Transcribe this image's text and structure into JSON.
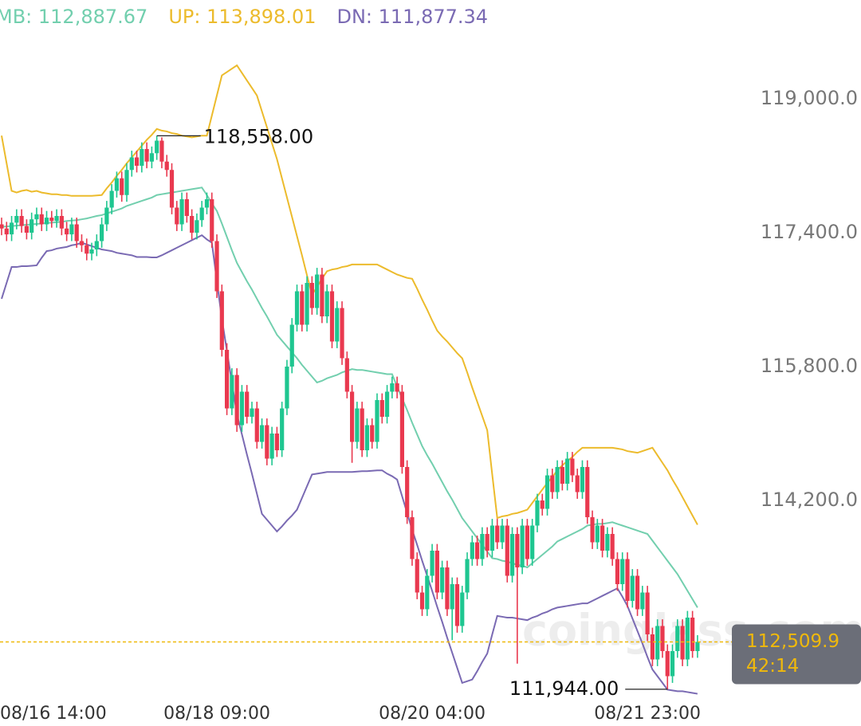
{
  "chart_data": {
    "type": "candlestick",
    "categories": [
      "08/16 14:00",
      null,
      null,
      null,
      null,
      null,
      null,
      null,
      null,
      null,
      null,
      null,
      null,
      null,
      null,
      null,
      null,
      null,
      null,
      null,
      null,
      null,
      null,
      null,
      null,
      null,
      null,
      null,
      null,
      null,
      null,
      null,
      null,
      null,
      null,
      null,
      null,
      null,
      null,
      null,
      null,
      null,
      null,
      "08/18 09:00",
      null,
      null,
      null,
      null,
      null,
      null,
      null,
      null,
      null,
      null,
      null,
      null,
      null,
      null,
      null,
      null,
      null,
      null,
      null,
      null,
      null,
      null,
      null,
      null,
      null,
      null,
      null,
      null,
      null,
      null,
      null,
      null,
      null,
      null,
      null,
      null,
      null,
      null,
      null,
      null,
      null,
      null,
      "08/20 04:00",
      null,
      null,
      null,
      null,
      null,
      null,
      null,
      null,
      null,
      null,
      null,
      null,
      null,
      null,
      null,
      null,
      null,
      null,
      null,
      null,
      null,
      null,
      null,
      null,
      null,
      null,
      null,
      null,
      null,
      null,
      null,
      null,
      null,
      null,
      null,
      null,
      null,
      null,
      null,
      null,
      null,
      null,
      "08/21 23:00",
      null,
      null,
      null,
      null,
      null,
      null,
      null,
      null,
      null,
      null
    ],
    "open": [
      117500,
      117450,
      117380,
      117520,
      117600,
      117480,
      117400,
      117560,
      117620,
      117500,
      117580,
      117540,
      117600,
      117450,
      117380,
      117500,
      117300,
      117250,
      117150,
      117200,
      117300,
      117500,
      117700,
      117900,
      118050,
      117850,
      118150,
      118300,
      118200,
      118400,
      118250,
      118350,
      118500,
      118250,
      118150,
      117700,
      117500,
      117800,
      117600,
      117400,
      117550,
      117700,
      117800,
      117300,
      116700,
      116000,
      115300,
      115700,
      115100,
      115500,
      115200,
      115300,
      114900,
      115100,
      114700,
      115000,
      114800,
      115300,
      115800,
      116300,
      116700,
      116300,
      116800,
      116500,
      116900,
      116400,
      116700,
      116100,
      116500,
      115900,
      115500,
      114900,
      115300,
      114800,
      115100,
      114900,
      115400,
      115200,
      115500,
      115600,
      115500,
      114600,
      114000,
      113500,
      113100,
      112900,
      113300,
      113600,
      113100,
      113400,
      112900,
      113200,
      112700,
      113100,
      113500,
      113700,
      113500,
      113800,
      113600,
      113900,
      113700,
      113900,
      113300,
      113800,
      113400,
      113900,
      113500,
      113900,
      114200,
      114100,
      114500,
      114300,
      114600,
      114400,
      114700,
      114500,
      114300,
      114600,
      114000,
      113700,
      113900,
      113600,
      113800,
      113500,
      113200,
      113500,
      113000,
      113300,
      112900,
      113100,
      112600,
      112300,
      112700,
      112400,
      112100,
      112400,
      112700,
      112300,
      112800,
      112400
    ],
    "high": [
      117580,
      117530,
      117600,
      117680,
      117680,
      117560,
      117640,
      117700,
      117700,
      117660,
      117660,
      117680,
      117680,
      117530,
      117580,
      117580,
      117380,
      117330,
      117280,
      117380,
      117580,
      117780,
      117980,
      118130,
      118130,
      118230,
      118380,
      118380,
      118480,
      118480,
      118430,
      118558,
      118540,
      118330,
      118230,
      117780,
      117880,
      117880,
      117680,
      117630,
      117780,
      117880,
      117880,
      117380,
      116780,
      116080,
      115780,
      115780,
      115580,
      115580,
      115380,
      115380,
      115180,
      115180,
      115080,
      115080,
      115380,
      115880,
      116380,
      116780,
      116780,
      116880,
      116880,
      116980,
      116980,
      116780,
      116780,
      116580,
      116580,
      115980,
      115580,
      115380,
      115380,
      115180,
      115180,
      115480,
      115480,
      115580,
      115680,
      115680,
      115580,
      114680,
      114080,
      113580,
      113180,
      113380,
      113680,
      113680,
      113480,
      113480,
      113280,
      113280,
      113180,
      113580,
      113780,
      113780,
      113880,
      113880,
      113980,
      113980,
      113980,
      113980,
      113880,
      113880,
      113980,
      113980,
      113980,
      114280,
      114280,
      114580,
      114580,
      114680,
      114680,
      114780,
      114780,
      114580,
      114680,
      114680,
      114080,
      113980,
      113980,
      113880,
      113880,
      113580,
      113580,
      113580,
      113380,
      113380,
      113180,
      113180,
      112680,
      112780,
      112780,
      112480,
      112480,
      112780,
      112780,
      112880,
      112880,
      112590
    ],
    "low": [
      117370,
      117300,
      117300,
      117440,
      117400,
      117320,
      117320,
      117480,
      117420,
      117420,
      117460,
      117460,
      117370,
      117300,
      117300,
      117220,
      117170,
      117070,
      117070,
      117120,
      117220,
      117420,
      117620,
      117820,
      117770,
      117770,
      118070,
      118120,
      118120,
      118170,
      118170,
      118270,
      118170,
      118070,
      117620,
      117420,
      117420,
      117520,
      117320,
      117320,
      117470,
      117620,
      117220,
      116620,
      115920,
      115220,
      115220,
      115020,
      115020,
      115120,
      115120,
      114820,
      114820,
      114620,
      114620,
      114720,
      114720,
      115220,
      115720,
      116220,
      116220,
      116220,
      116420,
      116420,
      116320,
      116320,
      116020,
      116020,
      115820,
      115420,
      114650,
      114820,
      114720,
      114720,
      114820,
      114820,
      115120,
      115120,
      115420,
      115420,
      114520,
      113920,
      113420,
      113020,
      112820,
      112820,
      113220,
      113020,
      113020,
      112820,
      112530,
      112620,
      112620,
      113020,
      113420,
      113420,
      113420,
      113520,
      113520,
      113620,
      113620,
      113220,
      113220,
      112250,
      113320,
      113420,
      113420,
      113820,
      114020,
      114020,
      114220,
      114220,
      114320,
      114320,
      114420,
      114220,
      114220,
      113920,
      113620,
      113620,
      113520,
      113520,
      113420,
      113120,
      113120,
      112920,
      112920,
      112820,
      112820,
      112520,
      112220,
      112220,
      112320,
      111944,
      112020,
      112320,
      112220,
      112220,
      112320,
      112320
    ],
    "close": [
      117450,
      117380,
      117520,
      117600,
      117480,
      117400,
      117560,
      117620,
      117500,
      117580,
      117540,
      117600,
      117450,
      117380,
      117500,
      117300,
      117250,
      117150,
      117200,
      117300,
      117500,
      117700,
      117900,
      118050,
      117850,
      118150,
      118300,
      118200,
      118400,
      118250,
      118350,
      118500,
      118250,
      118150,
      117700,
      117500,
      117800,
      117600,
      117400,
      117550,
      117700,
      117800,
      117300,
      116700,
      116000,
      115300,
      115700,
      115100,
      115500,
      115200,
      115300,
      114900,
      115100,
      114700,
      115000,
      114800,
      115300,
      115800,
      116300,
      116700,
      116300,
      116800,
      116500,
      116900,
      116400,
      116700,
      116100,
      116500,
      115900,
      115500,
      114900,
      115300,
      114800,
      115100,
      114900,
      115400,
      115200,
      115500,
      115600,
      115500,
      114600,
      114000,
      113500,
      113100,
      112900,
      113300,
      113600,
      113100,
      113400,
      112900,
      113200,
      112700,
      113100,
      113500,
      113700,
      113500,
      113800,
      113600,
      113900,
      113700,
      113900,
      113300,
      113800,
      113400,
      113900,
      113500,
      113900,
      114200,
      114100,
      114500,
      114300,
      114600,
      114400,
      114700,
      114500,
      114300,
      114600,
      114000,
      113700,
      113900,
      113600,
      113800,
      113500,
      113200,
      113500,
      113000,
      113300,
      112900,
      113100,
      112600,
      112300,
      112700,
      112400,
      112100,
      112400,
      112700,
      112300,
      112800,
      112400,
      112509.9
    ],
    "up_color": "#1fc690",
    "down_color": "#e9394f",
    "series": [
      {
        "name": "MB: 112,887.67",
        "color": "#72cfae",
        "values": [
          117470,
          117475,
          117480,
          117485,
          117490,
          117495,
          117500,
          117505,
          117510,
          117515,
          117520,
          117525,
          117530,
          117540,
          117545,
          117550,
          117560,
          117570,
          117585,
          117600,
          117610,
          117630,
          117650,
          117670,
          117690,
          117720,
          117740,
          117760,
          117780,
          117800,
          117820,
          117850,
          117860,
          117870,
          117880,
          117890,
          117900,
          117910,
          117920,
          117930,
          117940,
          117850,
          117750,
          117660,
          117510,
          117350,
          117190,
          117040,
          116930,
          116820,
          116720,
          116610,
          116500,
          116400,
          116290,
          116180,
          116110,
          116040,
          115970,
          115900,
          115820,
          115750,
          115680,
          115610,
          115630,
          115660,
          115680,
          115700,
          115730,
          115750,
          115770,
          115760,
          115760,
          115750,
          115740,
          115730,
          115720,
          115710,
          115710,
          115560,
          115420,
          115280,
          115130,
          114990,
          114850,
          114740,
          114640,
          114530,
          114420,
          114310,
          114210,
          114100,
          113990,
          113910,
          113830,
          113750,
          113670,
          113590,
          113510,
          113500,
          113480,
          113470,
          113450,
          113430,
          113420,
          113400,
          113450,
          113500,
          113550,
          113600,
          113650,
          113710,
          113740,
          113770,
          113800,
          113830,
          113860,
          113900,
          113910,
          113920,
          113920,
          113930,
          113940,
          113920,
          113900,
          113880,
          113860,
          113840,
          113820,
          113800,
          113720,
          113640,
          113560,
          113480,
          113400,
          113320,
          113220,
          113120,
          113020,
          112920
        ]
      },
      {
        "name": "UP: 113,898.01",
        "color": "#ecbb2c",
        "values": [
          118560,
          118230,
          117900,
          117880,
          117900,
          117910,
          117890,
          117900,
          117880,
          117870,
          117860,
          117860,
          117850,
          117850,
          117840,
          117840,
          117840,
          117840,
          117840,
          117845,
          117850,
          117930,
          118000,
          118080,
          118150,
          118230,
          118300,
          118370,
          118440,
          118510,
          118570,
          118640,
          118620,
          118610,
          118590,
          118580,
          118560,
          118550,
          118540,
          118550,
          118560,
          118560,
          118800,
          119040,
          119280,
          119320,
          119360,
          119400,
          119310,
          119220,
          119130,
          119040,
          118850,
          118660,
          118470,
          118280,
          118050,
          117820,
          117590,
          117360,
          117130,
          116890,
          116660,
          116750,
          116850,
          116940,
          116960,
          116970,
          116990,
          117000,
          117020,
          117020,
          117020,
          117020,
          117020,
          117020,
          116990,
          116960,
          116930,
          116900,
          116880,
          116860,
          116850,
          116730,
          116600,
          116480,
          116350,
          116230,
          116160,
          116100,
          116030,
          115960,
          115900,
          115730,
          115550,
          115380,
          115210,
          115040,
          114510,
          113990,
          114010,
          114020,
          114040,
          114050,
          114070,
          114090,
          114170,
          114250,
          114330,
          114410,
          114480,
          114560,
          114620,
          114670,
          114720,
          114780,
          114830,
          114830,
          114830,
          114830,
          114830,
          114830,
          114830,
          114820,
          114810,
          114790,
          114780,
          114770,
          114790,
          114810,
          114830,
          114740,
          114650,
          114560,
          114450,
          114350,
          114240,
          114130,
          114020,
          113910
        ]
      },
      {
        "name": "DN: 111,877.34",
        "color": "#7a6ab3",
        "values": [
          116610,
          116800,
          116990,
          116990,
          117000,
          117000,
          117005,
          117010,
          117100,
          117180,
          117190,
          117210,
          117220,
          117230,
          117250,
          117260,
          117280,
          117260,
          117240,
          117220,
          117200,
          117190,
          117180,
          117160,
          117150,
          117140,
          117130,
          117110,
          117110,
          117110,
          117105,
          117105,
          117130,
          117160,
          117190,
          117220,
          117250,
          117280,
          117310,
          117340,
          117370,
          117320,
          117280,
          116820,
          116370,
          115990,
          115610,
          115230,
          114990,
          114750,
          114520,
          114280,
          114040,
          113970,
          113900,
          113830,
          113890,
          113960,
          114020,
          114090,
          114230,
          114370,
          114510,
          114520,
          114530,
          114540,
          114540,
          114540,
          114540,
          114540,
          114540,
          114545,
          114550,
          114550,
          114555,
          114560,
          114560,
          114520,
          114490,
          114450,
          114250,
          114050,
          113850,
          113670,
          113480,
          113300,
          113120,
          112930,
          112750,
          112560,
          112380,
          112200,
          112020,
          112040,
          112060,
          112160,
          112270,
          112370,
          112600,
          112820,
          112810,
          112800,
          112800,
          112790,
          112780,
          112770,
          112800,
          112820,
          112850,
          112870,
          112900,
          112920,
          112930,
          112940,
          112950,
          112960,
          112970,
          112970,
          113000,
          113030,
          113060,
          113090,
          113120,
          113150,
          113050,
          112940,
          112790,
          112640,
          112490,
          112330,
          112180,
          112100,
          112020,
          111940,
          111930,
          111920,
          111920,
          111910,
          111900,
          111890
        ]
      }
    ],
    "ylim": [
      111800,
      120000
    ],
    "yticks": [
      {
        "value": 114200,
        "label": "114,200.0"
      },
      {
        "value": 115800,
        "label": "115,800.0"
      },
      {
        "value": 117400,
        "label": "117,400.0"
      },
      {
        "value": 119000,
        "label": "119,000.0"
      }
    ],
    "max_label": "118,558.00",
    "min_label": "111,944.00",
    "last_label": "112,509.9",
    "countdown": "42:14",
    "last_color": "#f0b90b",
    "watermark": "coinglass.com"
  }
}
